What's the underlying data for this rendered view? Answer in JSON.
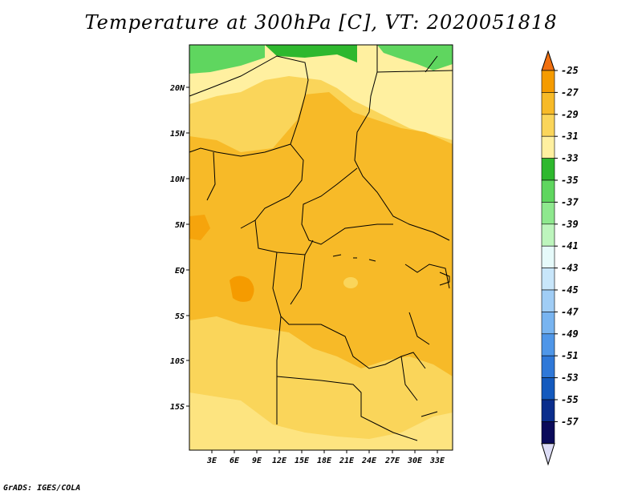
{
  "title": "Temperature at 300hPa [C], VT: 2020051818",
  "credit": "GrADS: IGES/COLA",
  "map": {
    "lat_labels": [
      "20N",
      "15N",
      "10N",
      "5N",
      "EQ",
      "5S",
      "10S",
      "15S"
    ],
    "lon_labels": [
      "3E",
      "6E",
      "9E",
      "12E",
      "15E",
      "18E",
      "21E",
      "24E",
      "27E",
      "30E",
      "33E"
    ]
  },
  "colorbar": {
    "labels": [
      "-25",
      "-27",
      "-29",
      "-31",
      "-33",
      "-35",
      "-37",
      "-39",
      "-41",
      "-43",
      "-45",
      "-47",
      "-49",
      "-51",
      "-53",
      "-55",
      "-57"
    ],
    "colors": [
      "#f07010",
      "#f59b00",
      "#f7ba28",
      "#fad55a",
      "#fff0a0",
      "#2eb82e",
      "#5fd65f",
      "#8ee88e",
      "#bdf5bd",
      "#e6fafa",
      "#c8e6fa",
      "#a0cdf5",
      "#78b4f0",
      "#4f96e8",
      "#2f78d8",
      "#145abe",
      "#0a2d8c",
      "#0a0a5a",
      "#dcdcf5"
    ]
  },
  "colors": {
    "band_minus29_to_minus27": "#f59b00",
    "band_minus31_to_minus29": "#f7ba28",
    "band_minus33_to_minus31": "#fad55a",
    "band_minus35_to_minus33": "#fff0a0",
    "band_minus37_to_minus35": "#2eb82e",
    "band_minus39_to_minus37": "#5fd65f"
  }
}
